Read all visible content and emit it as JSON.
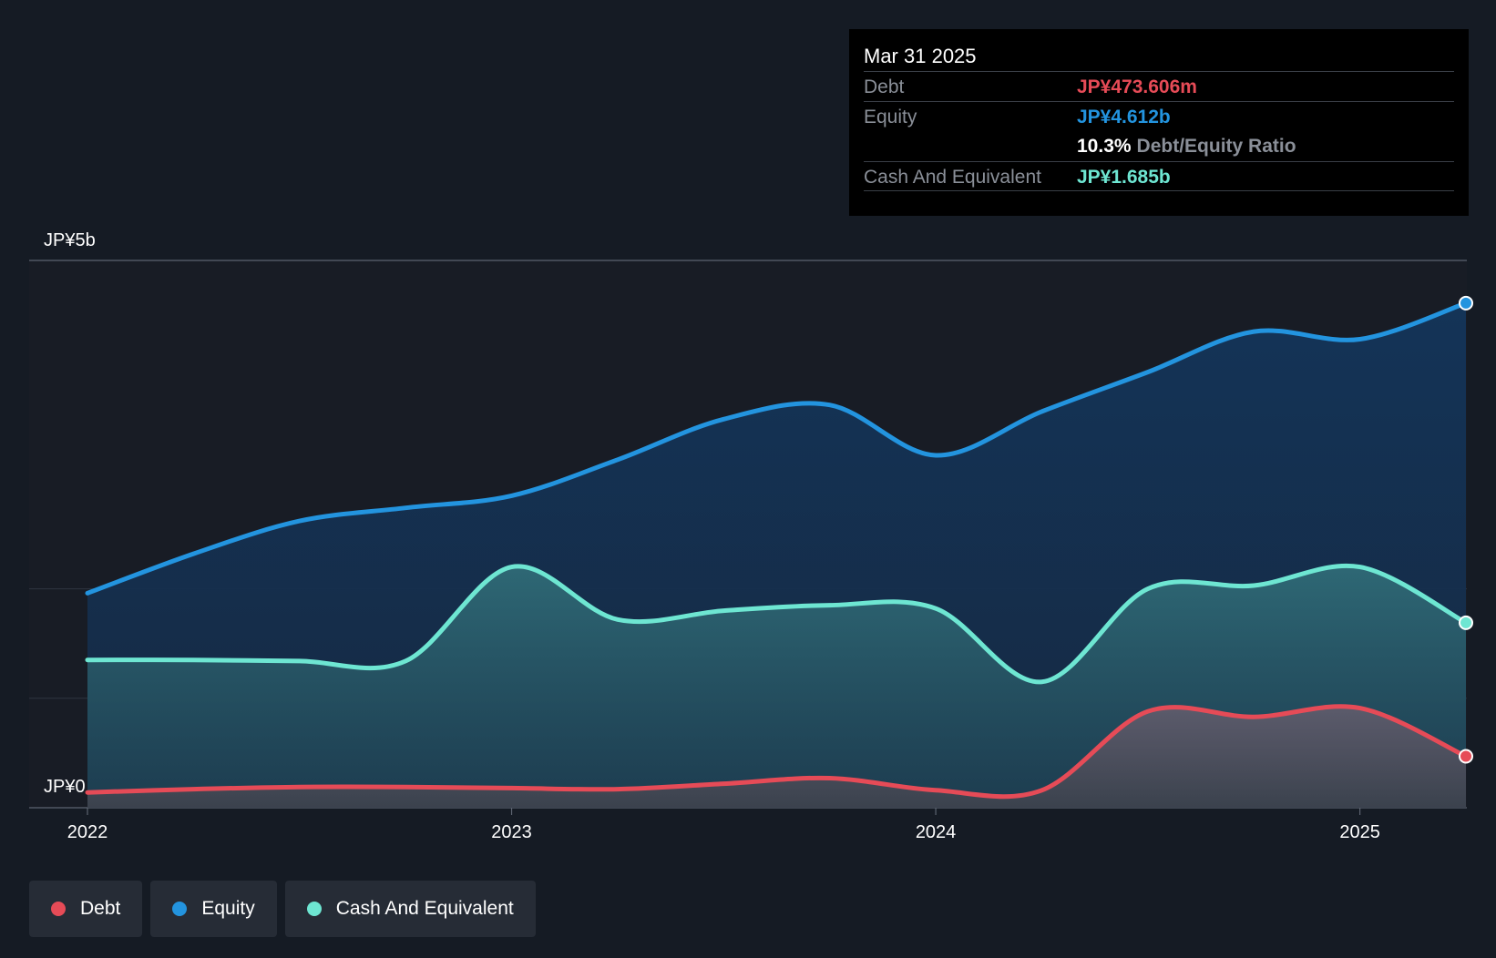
{
  "tooltip": {
    "date": "Mar 31 2025",
    "debt_label": "Debt",
    "debt_value": "JP¥473.606m",
    "equity_label": "Equity",
    "equity_value": "JP¥4.612b",
    "ratio_value": "10.3%",
    "ratio_label": "Debt/Equity Ratio",
    "cash_label": "Cash And Equivalent",
    "cash_value": "JP¥1.685b"
  },
  "legend": {
    "debt": "Debt",
    "equity": "Equity",
    "cash": "Cash And Equivalent"
  },
  "colors": {
    "debt": "#e64b57",
    "equity": "#2394df",
    "cash": "#6ee6d2",
    "background": "#151b24"
  },
  "chart_data": {
    "type": "area",
    "title": "",
    "xlabel": "",
    "ylabel": "",
    "y_tick_labels": [
      "JP¥0",
      "JP¥5b"
    ],
    "x_tick_labels": [
      "2022",
      "2023",
      "2024",
      "2025"
    ],
    "xlim": [
      2022.0,
      2025.25
    ],
    "ylim": [
      0,
      5
    ],
    "unit": "JP¥ billions",
    "grid": true,
    "series": [
      {
        "name": "Equity",
        "x": [
          2022.0,
          2022.25,
          2022.5,
          2022.75,
          2023.0,
          2023.25,
          2023.5,
          2023.75,
          2024.0,
          2024.25,
          2024.5,
          2024.75,
          2025.0,
          2025.25
        ],
        "values": [
          1.96,
          2.32,
          2.62,
          2.74,
          2.85,
          3.18,
          3.55,
          3.68,
          3.22,
          3.62,
          3.98,
          4.35,
          4.28,
          4.61
        ]
      },
      {
        "name": "Cash And Equivalent",
        "x": [
          2022.0,
          2022.25,
          2022.5,
          2022.75,
          2023.0,
          2023.25,
          2023.5,
          2023.75,
          2024.0,
          2024.25,
          2024.5,
          2024.75,
          2025.0,
          2025.25
        ],
        "values": [
          1.35,
          1.35,
          1.34,
          1.34,
          2.2,
          1.72,
          1.8,
          1.85,
          1.82,
          1.15,
          2.0,
          2.03,
          2.2,
          1.69
        ]
      },
      {
        "name": "Debt",
        "x": [
          2022.0,
          2022.25,
          2022.5,
          2022.75,
          2023.0,
          2023.25,
          2023.5,
          2023.75,
          2024.0,
          2024.25,
          2024.5,
          2024.75,
          2025.0,
          2025.25
        ],
        "values": [
          0.14,
          0.17,
          0.19,
          0.19,
          0.18,
          0.17,
          0.22,
          0.27,
          0.16,
          0.16,
          0.88,
          0.83,
          0.91,
          0.47
        ]
      }
    ]
  }
}
